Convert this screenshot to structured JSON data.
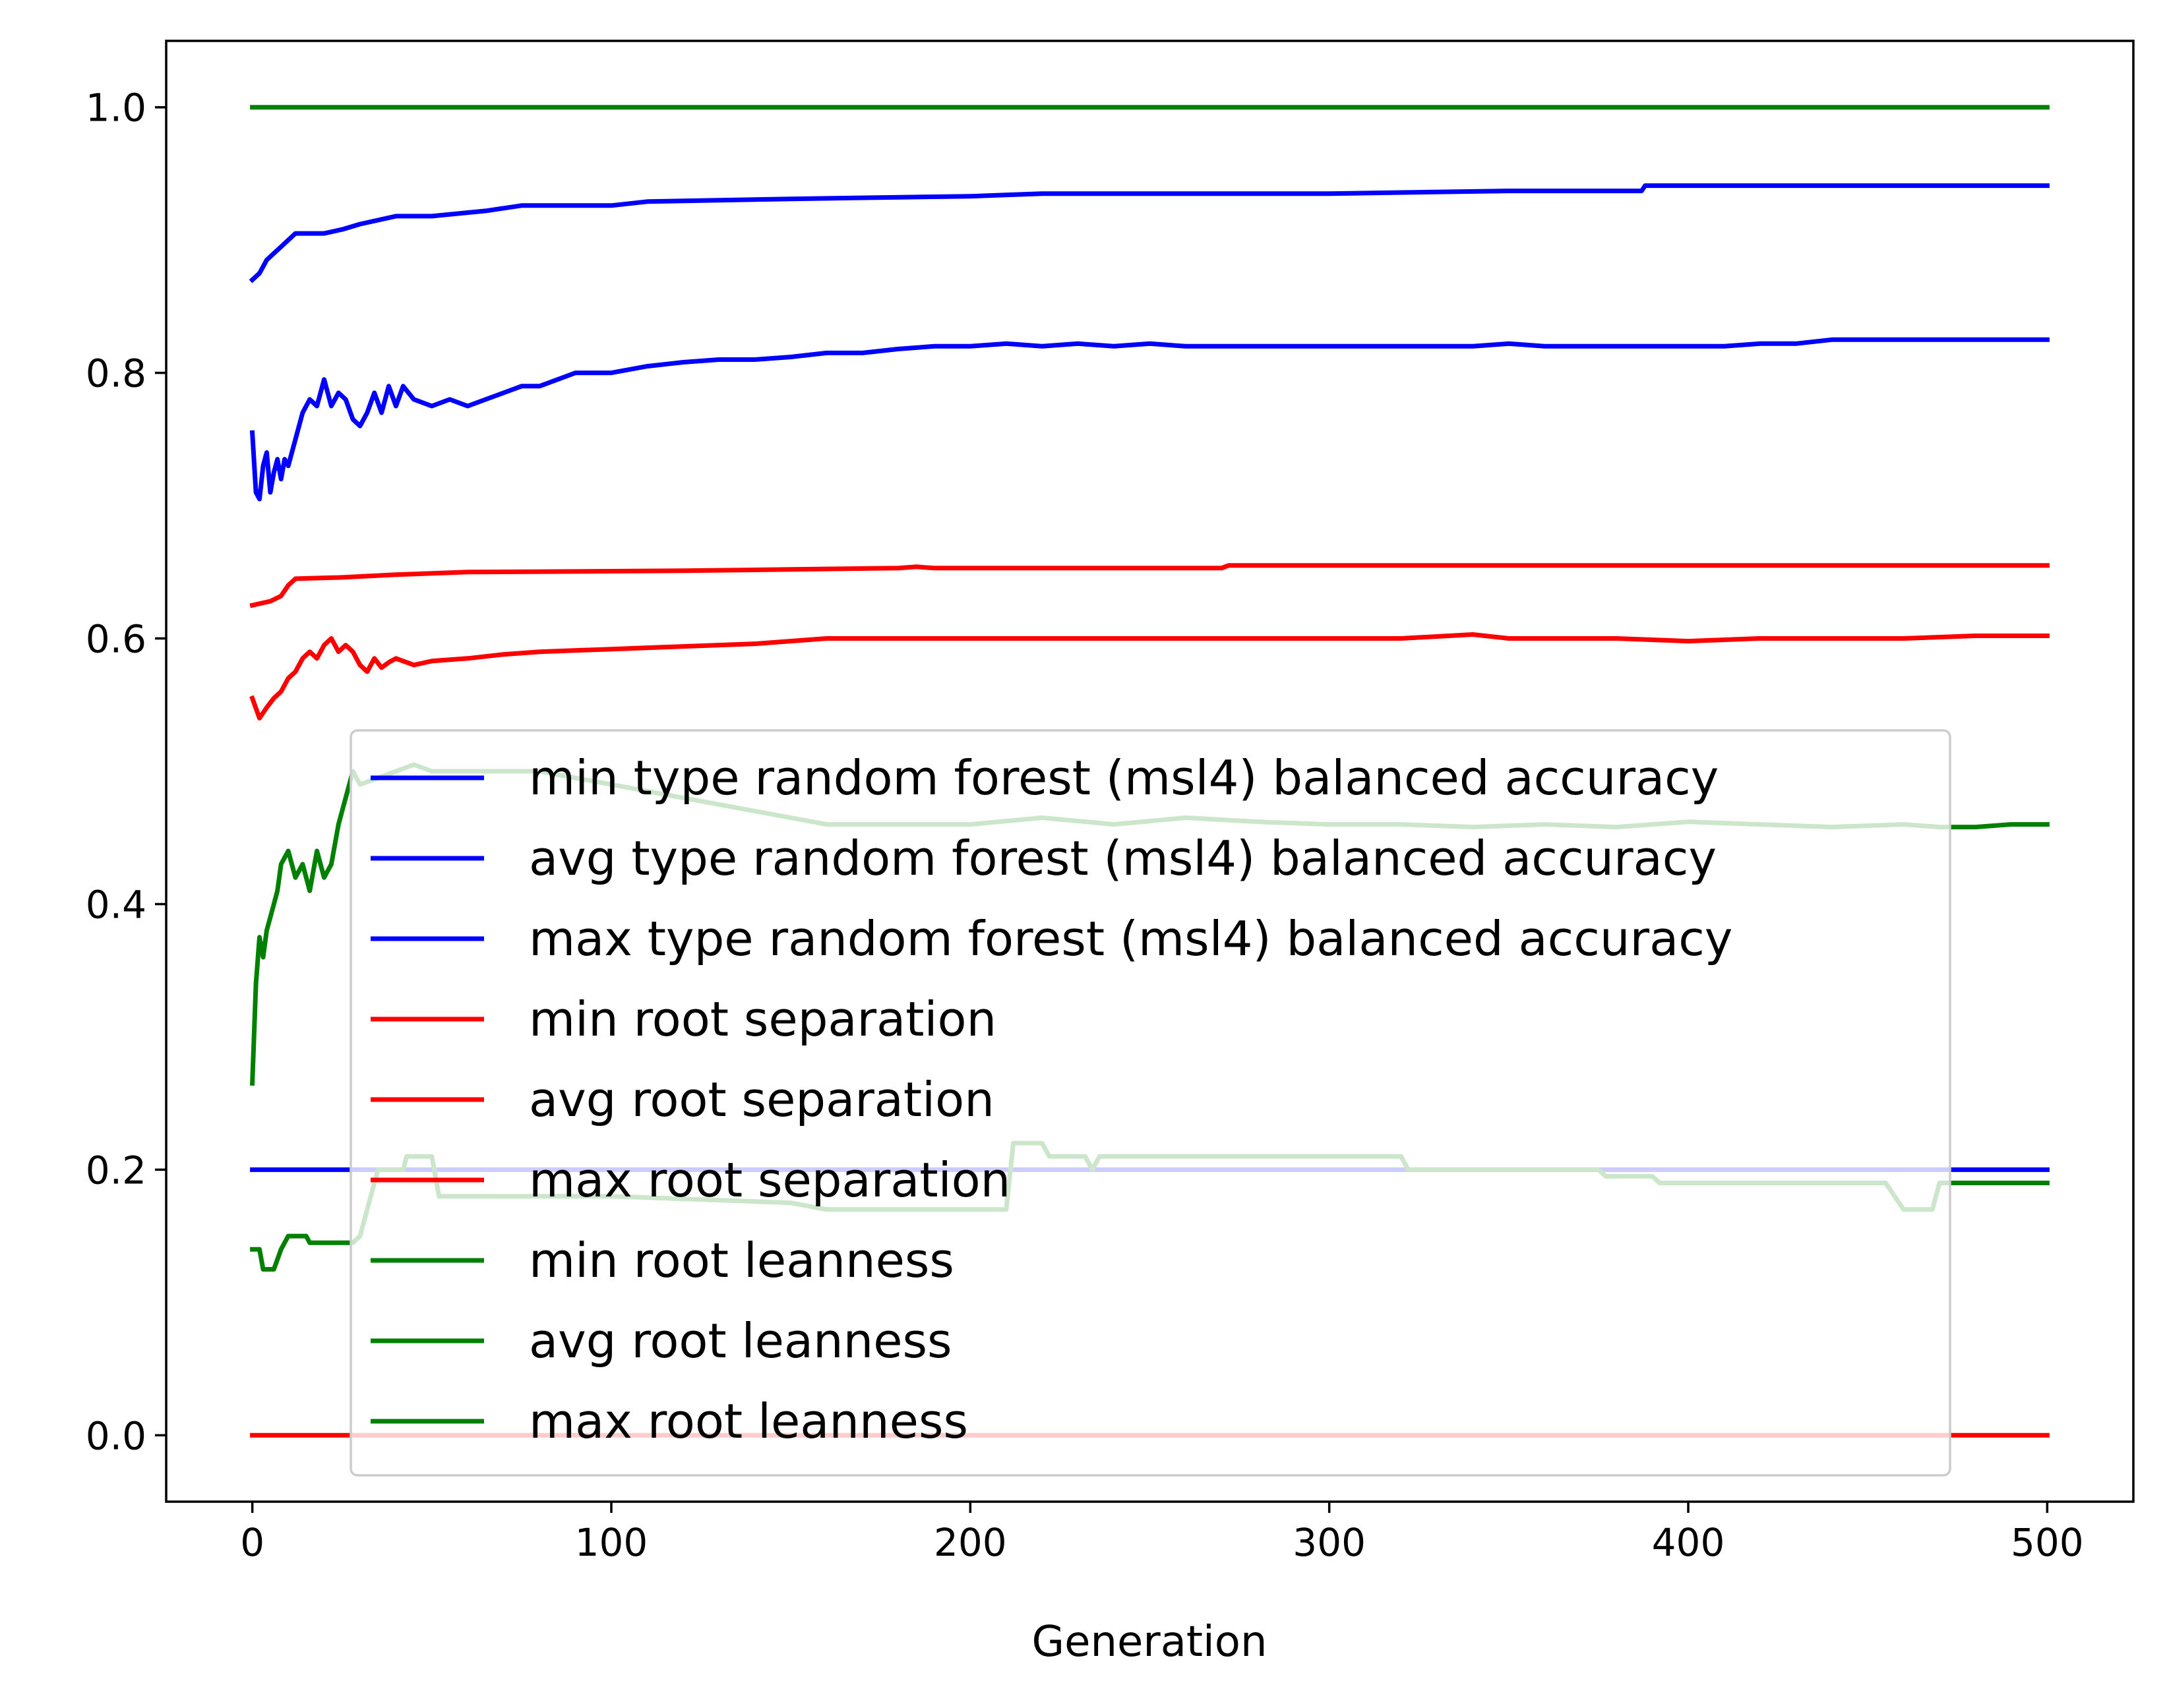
{
  "chart_data": {
    "type": "line",
    "title": "",
    "xlabel": "Generation",
    "ylabel": "",
    "xlim": [
      -24,
      524
    ],
    "ylim": [
      -0.05,
      1.05
    ],
    "xticks": [
      0,
      100,
      200,
      300,
      400,
      500
    ],
    "xtick_labels": [
      "0",
      "100",
      "200",
      "300",
      "400",
      "500"
    ],
    "yticks": [
      0.0,
      0.2,
      0.4,
      0.6,
      0.8,
      1.0
    ],
    "ytick_labels": [
      "0.0",
      "0.2",
      "0.4",
      "0.6",
      "0.8",
      "1.0"
    ],
    "grid": false,
    "legend_position": "center",
    "series": [
      {
        "name": "min type random forest (msl4) balanced accuracy",
        "color": "#0000ff",
        "points": [
          [
            0,
            0.2
          ],
          [
            500,
            0.2
          ]
        ]
      },
      {
        "name": "avg type random forest (msl4) balanced accuracy",
        "color": "#0000ff",
        "points": [
          [
            0,
            0.755
          ],
          [
            1,
            0.71
          ],
          [
            2,
            0.705
          ],
          [
            3,
            0.73
          ],
          [
            4,
            0.74
          ],
          [
            5,
            0.71
          ],
          [
            6,
            0.725
          ],
          [
            7,
            0.735
          ],
          [
            8,
            0.72
          ],
          [
            9,
            0.735
          ],
          [
            10,
            0.73
          ],
          [
            12,
            0.75
          ],
          [
            14,
            0.77
          ],
          [
            16,
            0.78
          ],
          [
            18,
            0.775
          ],
          [
            20,
            0.795
          ],
          [
            22,
            0.775
          ],
          [
            24,
            0.785
          ],
          [
            26,
            0.78
          ],
          [
            28,
            0.765
          ],
          [
            30,
            0.76
          ],
          [
            32,
            0.77
          ],
          [
            34,
            0.785
          ],
          [
            36,
            0.77
          ],
          [
            38,
            0.79
          ],
          [
            40,
            0.775
          ],
          [
            42,
            0.79
          ],
          [
            45,
            0.78
          ],
          [
            50,
            0.775
          ],
          [
            55,
            0.78
          ],
          [
            60,
            0.775
          ],
          [
            65,
            0.78
          ],
          [
            70,
            0.785
          ],
          [
            75,
            0.79
          ],
          [
            80,
            0.79
          ],
          [
            90,
            0.8
          ],
          [
            100,
            0.8
          ],
          [
            110,
            0.805
          ],
          [
            120,
            0.808
          ],
          [
            130,
            0.81
          ],
          [
            140,
            0.81
          ],
          [
            150,
            0.812
          ],
          [
            160,
            0.815
          ],
          [
            170,
            0.815
          ],
          [
            180,
            0.818
          ],
          [
            190,
            0.82
          ],
          [
            200,
            0.82
          ],
          [
            210,
            0.822
          ],
          [
            220,
            0.82
          ],
          [
            230,
            0.822
          ],
          [
            240,
            0.82
          ],
          [
            250,
            0.822
          ],
          [
            260,
            0.82
          ],
          [
            270,
            0.82
          ],
          [
            280,
            0.82
          ],
          [
            290,
            0.82
          ],
          [
            300,
            0.82
          ],
          [
            310,
            0.82
          ],
          [
            320,
            0.82
          ],
          [
            330,
            0.82
          ],
          [
            340,
            0.82
          ],
          [
            350,
            0.822
          ],
          [
            360,
            0.82
          ],
          [
            370,
            0.82
          ],
          [
            380,
            0.82
          ],
          [
            390,
            0.82
          ],
          [
            400,
            0.82
          ],
          [
            410,
            0.82
          ],
          [
            420,
            0.822
          ],
          [
            430,
            0.822
          ],
          [
            440,
            0.825
          ],
          [
            450,
            0.825
          ],
          [
            460,
            0.825
          ],
          [
            470,
            0.825
          ],
          [
            480,
            0.825
          ],
          [
            490,
            0.825
          ],
          [
            500,
            0.825
          ]
        ]
      },
      {
        "name": "max type random forest (msl4) balanced accuracy",
        "color": "#0000ff",
        "points": [
          [
            0,
            0.87
          ],
          [
            2,
            0.875
          ],
          [
            4,
            0.885
          ],
          [
            6,
            0.89
          ],
          [
            8,
            0.895
          ],
          [
            10,
            0.9
          ],
          [
            12,
            0.905
          ],
          [
            20,
            0.905
          ],
          [
            25,
            0.908
          ],
          [
            30,
            0.912
          ],
          [
            40,
            0.918
          ],
          [
            50,
            0.918
          ],
          [
            65,
            0.922
          ],
          [
            75,
            0.926
          ],
          [
            100,
            0.926
          ],
          [
            110,
            0.929
          ],
          [
            150,
            0.931
          ],
          [
            200,
            0.933
          ],
          [
            220,
            0.935
          ],
          [
            300,
            0.935
          ],
          [
            350,
            0.937
          ],
          [
            387,
            0.937
          ],
          [
            388,
            0.941
          ],
          [
            500,
            0.941
          ]
        ]
      },
      {
        "name": "min root separation",
        "color": "#ff0000",
        "points": [
          [
            0,
            0.0
          ],
          [
            500,
            0.0
          ]
        ]
      },
      {
        "name": "avg root separation",
        "color": "#ff0000",
        "points": [
          [
            0,
            0.555
          ],
          [
            2,
            0.54
          ],
          [
            4,
            0.548
          ],
          [
            6,
            0.555
          ],
          [
            8,
            0.56
          ],
          [
            10,
            0.57
          ],
          [
            12,
            0.575
          ],
          [
            14,
            0.585
          ],
          [
            16,
            0.59
          ],
          [
            18,
            0.585
          ],
          [
            20,
            0.595
          ],
          [
            22,
            0.6
          ],
          [
            24,
            0.59
          ],
          [
            26,
            0.595
          ],
          [
            28,
            0.59
          ],
          [
            30,
            0.58
          ],
          [
            32,
            0.575
          ],
          [
            34,
            0.585
          ],
          [
            36,
            0.578
          ],
          [
            38,
            0.582
          ],
          [
            40,
            0.585
          ],
          [
            45,
            0.58
          ],
          [
            50,
            0.583
          ],
          [
            60,
            0.585
          ],
          [
            70,
            0.588
          ],
          [
            80,
            0.59
          ],
          [
            100,
            0.592
          ],
          [
            120,
            0.594
          ],
          [
            140,
            0.596
          ],
          [
            160,
            0.6
          ],
          [
            180,
            0.6
          ],
          [
            200,
            0.6
          ],
          [
            220,
            0.6
          ],
          [
            240,
            0.6
          ],
          [
            260,
            0.6
          ],
          [
            280,
            0.6
          ],
          [
            300,
            0.6
          ],
          [
            320,
            0.6
          ],
          [
            340,
            0.603
          ],
          [
            350,
            0.6
          ],
          [
            380,
            0.6
          ],
          [
            400,
            0.598
          ],
          [
            420,
            0.6
          ],
          [
            440,
            0.6
          ],
          [
            460,
            0.6
          ],
          [
            480,
            0.602
          ],
          [
            500,
            0.602
          ]
        ]
      },
      {
        "name": "max root separation",
        "color": "#ff0000",
        "points": [
          [
            0,
            0.625
          ],
          [
            5,
            0.628
          ],
          [
            8,
            0.632
          ],
          [
            10,
            0.64
          ],
          [
            12,
            0.645
          ],
          [
            25,
            0.646
          ],
          [
            40,
            0.648
          ],
          [
            60,
            0.65
          ],
          [
            120,
            0.651
          ],
          [
            150,
            0.652
          ],
          [
            180,
            0.653
          ],
          [
            185,
            0.654
          ],
          [
            190,
            0.653
          ],
          [
            270,
            0.653
          ],
          [
            272,
            0.655
          ],
          [
            500,
            0.655
          ]
        ]
      },
      {
        "name": "min root leanness",
        "color": "#008000",
        "points": [
          [
            0,
            0.14
          ],
          [
            2,
            0.14
          ],
          [
            3,
            0.125
          ],
          [
            6,
            0.125
          ],
          [
            8,
            0.14
          ],
          [
            10,
            0.15
          ],
          [
            15,
            0.15
          ],
          [
            16,
            0.145
          ],
          [
            28,
            0.145
          ],
          [
            30,
            0.15
          ],
          [
            35,
            0.2
          ],
          [
            42,
            0.2
          ],
          [
            43,
            0.21
          ],
          [
            50,
            0.21
          ],
          [
            52,
            0.18
          ],
          [
            100,
            0.18
          ],
          [
            150,
            0.175
          ],
          [
            160,
            0.17
          ],
          [
            210,
            0.17
          ],
          [
            212,
            0.22
          ],
          [
            220,
            0.22
          ],
          [
            222,
            0.21
          ],
          [
            232,
            0.21
          ],
          [
            234,
            0.2
          ],
          [
            236,
            0.21
          ],
          [
            320,
            0.21
          ],
          [
            322,
            0.2
          ],
          [
            375,
            0.2
          ],
          [
            377,
            0.195
          ],
          [
            390,
            0.195
          ],
          [
            392,
            0.19
          ],
          [
            455,
            0.19
          ],
          [
            460,
            0.17
          ],
          [
            468,
            0.17
          ],
          [
            470,
            0.19
          ],
          [
            500,
            0.19
          ]
        ]
      },
      {
        "name": "avg root leanness",
        "color": "#008000",
        "points": [
          [
            0,
            0.265
          ],
          [
            1,
            0.34
          ],
          [
            2,
            0.375
          ],
          [
            3,
            0.36
          ],
          [
            4,
            0.38
          ],
          [
            6,
            0.4
          ],
          [
            7,
            0.41
          ],
          [
            8,
            0.43
          ],
          [
            10,
            0.44
          ],
          [
            12,
            0.42
          ],
          [
            14,
            0.43
          ],
          [
            16,
            0.41
          ],
          [
            18,
            0.44
          ],
          [
            20,
            0.42
          ],
          [
            22,
            0.43
          ],
          [
            24,
            0.46
          ],
          [
            26,
            0.48
          ],
          [
            28,
            0.5
          ],
          [
            30,
            0.49
          ],
          [
            35,
            0.495
          ],
          [
            40,
            0.5
          ],
          [
            45,
            0.505
          ],
          [
            50,
            0.5
          ],
          [
            60,
            0.5
          ],
          [
            80,
            0.5
          ],
          [
            100,
            0.49
          ],
          [
            120,
            0.48
          ],
          [
            140,
            0.47
          ],
          [
            160,
            0.46
          ],
          [
            180,
            0.46
          ],
          [
            200,
            0.46
          ],
          [
            220,
            0.465
          ],
          [
            240,
            0.46
          ],
          [
            260,
            0.465
          ],
          [
            280,
            0.462
          ],
          [
            300,
            0.46
          ],
          [
            320,
            0.46
          ],
          [
            340,
            0.458
          ],
          [
            360,
            0.46
          ],
          [
            380,
            0.458
          ],
          [
            400,
            0.462
          ],
          [
            420,
            0.46
          ],
          [
            440,
            0.458
          ],
          [
            460,
            0.46
          ],
          [
            470,
            0.458
          ],
          [
            480,
            0.458
          ],
          [
            490,
            0.46
          ],
          [
            500,
            0.46
          ]
        ]
      },
      {
        "name": "max root leanness",
        "color": "#008000",
        "points": [
          [
            0,
            1.0
          ],
          [
            500,
            1.0
          ]
        ]
      }
    ]
  }
}
